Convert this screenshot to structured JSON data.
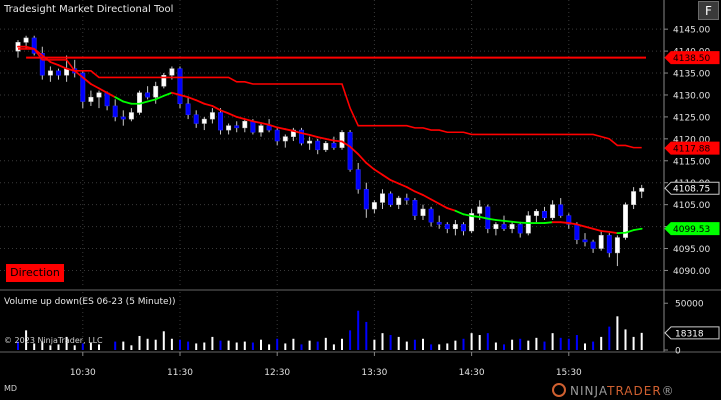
{
  "window": {
    "title": "Tradesight Market Directional Tool",
    "format_button": "F",
    "instrument_mode": "MD",
    "copyright": "© 2023 NinjaTrader, LLC",
    "brand_prefix": "NINJA",
    "brand_suffix": "TRADER",
    "brand_mark": "®"
  },
  "price_panel": {
    "direction_label": "Direction",
    "ylim": [
      4086,
      4148
    ],
    "y_ticks": [
      "4090.00",
      "4095.00",
      "4100.00",
      "4105.00",
      "4110.00",
      "4115.00",
      "4120.00",
      "4125.00",
      "4130.00",
      "4135.00",
      "4140.00",
      "4145.00"
    ],
    "markers": [
      {
        "label": "4138.50",
        "value": 4138.5,
        "color": "#ff0000",
        "text_color": "#000000"
      },
      {
        "label": "4117.88",
        "value": 4117.88,
        "color": "#ff0000",
        "text_color": "#000000"
      },
      {
        "label": "4108.75",
        "value": 4108.75,
        "color": "#000000",
        "text_color": "#ffffff"
      },
      {
        "label": "4099.53",
        "value": 4099.53,
        "color": "#00ff00",
        "text_color": "#000000"
      }
    ]
  },
  "volume_panel": {
    "label": "Volume up down(ES 06-23 (5 Minute))",
    "ylim": [
      0,
      62000
    ],
    "y_ticks": [
      "0",
      "50000"
    ],
    "marker": {
      "label": "18318",
      "value": 18318
    }
  },
  "time_axis": {
    "labels": [
      "10:30",
      "11:30",
      "12:30",
      "13:30",
      "14:30",
      "15:30"
    ],
    "label_bar_index": [
      8,
      20,
      32,
      44,
      56,
      68
    ]
  },
  "colors": {
    "background": "#000000",
    "up": "#ffffff",
    "down": "#0000ff",
    "red_line": "#ff0000",
    "green_line": "#00ff00",
    "grid": "#3a3a3a"
  },
  "chart_data": {
    "type": "candlestick",
    "bars": [
      {
        "o": 4140.0,
        "h": 4142.5,
        "l": 4138.5,
        "c": 4142.0
      },
      {
        "o": 4142.0,
        "h": 4143.5,
        "l": 4140.5,
        "c": 4143.0
      },
      {
        "o": 4143.0,
        "h": 4143.5,
        "l": 4139.0,
        "c": 4139.5
      },
      {
        "o": 4139.5,
        "h": 4141.0,
        "l": 4133.5,
        "c": 4134.5
      },
      {
        "o": 4134.5,
        "h": 4136.5,
        "l": 4133.0,
        "c": 4135.5
      },
      {
        "o": 4135.5,
        "h": 4136.0,
        "l": 4133.5,
        "c": 4134.5
      },
      {
        "o": 4134.5,
        "h": 4139.0,
        "l": 4133.0,
        "c": 4136.0
      },
      {
        "o": 4136.0,
        "h": 4138.0,
        "l": 4134.0,
        "c": 4135.0
      },
      {
        "o": 4135.0,
        "h": 4135.5,
        "l": 4127.0,
        "c": 4128.5
      },
      {
        "o": 4128.5,
        "h": 4131.0,
        "l": 4127.5,
        "c": 4129.5
      },
      {
        "o": 4129.5,
        "h": 4131.0,
        "l": 4127.0,
        "c": 4130.5
      },
      {
        "o": 4130.5,
        "h": 4130.8,
        "l": 4126.5,
        "c": 4127.5
      },
      {
        "o": 4127.5,
        "h": 4129.0,
        "l": 4124.0,
        "c": 4125.0
      },
      {
        "o": 4125.0,
        "h": 4126.5,
        "l": 4123.0,
        "c": 4124.5
      },
      {
        "o": 4124.5,
        "h": 4127.0,
        "l": 4124.0,
        "c": 4126.0
      },
      {
        "o": 4126.0,
        "h": 4131.0,
        "l": 4125.5,
        "c": 4130.5
      },
      {
        "o": 4130.5,
        "h": 4132.0,
        "l": 4129.0,
        "c": 4129.5
      },
      {
        "o": 4129.5,
        "h": 4133.0,
        "l": 4128.0,
        "c": 4132.0
      },
      {
        "o": 4132.0,
        "h": 4135.0,
        "l": 4131.5,
        "c": 4134.5
      },
      {
        "o": 4134.5,
        "h": 4136.5,
        "l": 4133.5,
        "c": 4136.0
      },
      {
        "o": 4136.0,
        "h": 4136.5,
        "l": 4127.0,
        "c": 4128.0
      },
      {
        "o": 4128.0,
        "h": 4129.5,
        "l": 4124.5,
        "c": 4125.5
      },
      {
        "o": 4125.5,
        "h": 4126.5,
        "l": 4122.5,
        "c": 4123.5
      },
      {
        "o": 4123.5,
        "h": 4125.0,
        "l": 4122.0,
        "c": 4124.5
      },
      {
        "o": 4124.5,
        "h": 4127.0,
        "l": 4123.5,
        "c": 4126.0
      },
      {
        "o": 4126.0,
        "h": 4127.0,
        "l": 4121.0,
        "c": 4122.0
      },
      {
        "o": 4122.0,
        "h": 4123.5,
        "l": 4121.0,
        "c": 4123.0
      },
      {
        "o": 4123.0,
        "h": 4124.0,
        "l": 4121.5,
        "c": 4122.5
      },
      {
        "o": 4122.5,
        "h": 4124.5,
        "l": 4121.5,
        "c": 4124.0
      },
      {
        "o": 4124.0,
        "h": 4124.5,
        "l": 4121.0,
        "c": 4121.5
      },
      {
        "o": 4121.5,
        "h": 4123.5,
        "l": 4120.5,
        "c": 4123.0
      },
      {
        "o": 4123.0,
        "h": 4124.5,
        "l": 4121.5,
        "c": 4122.0
      },
      {
        "o": 4122.0,
        "h": 4122.5,
        "l": 4118.5,
        "c": 4119.5
      },
      {
        "o": 4119.5,
        "h": 4121.0,
        "l": 4118.0,
        "c": 4120.5
      },
      {
        "o": 4120.5,
        "h": 4122.5,
        "l": 4119.5,
        "c": 4122.0
      },
      {
        "o": 4122.0,
        "h": 4122.5,
        "l": 4118.5,
        "c": 4119.0
      },
      {
        "o": 4119.0,
        "h": 4120.5,
        "l": 4117.5,
        "c": 4119.5
      },
      {
        "o": 4119.5,
        "h": 4120.0,
        "l": 4116.5,
        "c": 4117.5
      },
      {
        "o": 4117.5,
        "h": 4119.5,
        "l": 4117.0,
        "c": 4119.0
      },
      {
        "o": 4119.0,
        "h": 4120.5,
        "l": 4117.5,
        "c": 4118.0
      },
      {
        "o": 4118.0,
        "h": 4122.0,
        "l": 4117.5,
        "c": 4121.5
      },
      {
        "o": 4121.5,
        "h": 4122.0,
        "l": 4112.5,
        "c": 4113.0
      },
      {
        "o": 4113.0,
        "h": 4114.5,
        "l": 4107.5,
        "c": 4108.5
      },
      {
        "o": 4108.5,
        "h": 4110.0,
        "l": 4102.0,
        "c": 4104.0
      },
      {
        "o": 4104.0,
        "h": 4106.0,
        "l": 4103.0,
        "c": 4105.5
      },
      {
        "o": 4105.5,
        "h": 4108.5,
        "l": 4104.0,
        "c": 4107.5
      },
      {
        "o": 4107.5,
        "h": 4108.0,
        "l": 4104.5,
        "c": 4105.0
      },
      {
        "o": 4105.0,
        "h": 4107.0,
        "l": 4104.0,
        "c": 4106.5
      },
      {
        "o": 4106.5,
        "h": 4107.5,
        "l": 4105.0,
        "c": 4106.0
      },
      {
        "o": 4106.0,
        "h": 4106.5,
        "l": 4101.5,
        "c": 4102.5
      },
      {
        "o": 4102.5,
        "h": 4105.0,
        "l": 4101.5,
        "c": 4104.0
      },
      {
        "o": 4104.0,
        "h": 4104.5,
        "l": 4100.0,
        "c": 4101.0
      },
      {
        "o": 4101.0,
        "h": 4102.5,
        "l": 4099.5,
        "c": 4100.5
      },
      {
        "o": 4100.5,
        "h": 4101.0,
        "l": 4098.5,
        "c": 4099.5
      },
      {
        "o": 4099.5,
        "h": 4101.5,
        "l": 4098.0,
        "c": 4100.5
      },
      {
        "o": 4100.5,
        "h": 4101.0,
        "l": 4098.0,
        "c": 4099.0
      },
      {
        "o": 4099.0,
        "h": 4104.0,
        "l": 4098.5,
        "c": 4103.0
      },
      {
        "o": 4103.0,
        "h": 4106.0,
        "l": 4101.5,
        "c": 4104.5
      },
      {
        "o": 4104.5,
        "h": 4105.0,
        "l": 4098.5,
        "c": 4099.5
      },
      {
        "o": 4099.5,
        "h": 4101.0,
        "l": 4098.0,
        "c": 4100.5
      },
      {
        "o": 4100.5,
        "h": 4102.5,
        "l": 4099.0,
        "c": 4099.5
      },
      {
        "o": 4099.5,
        "h": 4101.0,
        "l": 4098.5,
        "c": 4100.5
      },
      {
        "o": 4100.5,
        "h": 4101.0,
        "l": 4097.5,
        "c": 4098.5
      },
      {
        "o": 4098.5,
        "h": 4103.5,
        "l": 4098.0,
        "c": 4102.5
      },
      {
        "o": 4102.5,
        "h": 4104.0,
        "l": 4101.0,
        "c": 4103.5
      },
      {
        "o": 4103.5,
        "h": 4104.5,
        "l": 4101.5,
        "c": 4102.0
      },
      {
        "o": 4102.0,
        "h": 4106.0,
        "l": 4101.5,
        "c": 4105.0
      },
      {
        "o": 4105.0,
        "h": 4106.5,
        "l": 4102.0,
        "c": 4102.5
      },
      {
        "o": 4102.5,
        "h": 4103.0,
        "l": 4099.5,
        "c": 4100.5
      },
      {
        "o": 4100.5,
        "h": 4101.0,
        "l": 4096.0,
        "c": 4097.0
      },
      {
        "o": 4097.0,
        "h": 4098.5,
        "l": 4095.5,
        "c": 4096.5
      },
      {
        "o": 4096.5,
        "h": 4097.0,
        "l": 4094.0,
        "c": 4095.0
      },
      {
        "o": 4095.0,
        "h": 4099.0,
        "l": 4094.5,
        "c": 4098.0
      },
      {
        "o": 4098.0,
        "h": 4098.5,
        "l": 4093.0,
        "c": 4094.0
      },
      {
        "o": 4094.0,
        "h": 4098.0,
        "l": 4091.0,
        "c": 4097.5
      },
      {
        "o": 4097.5,
        "h": 4105.5,
        "l": 4097.0,
        "c": 4105.0
      },
      {
        "o": 4105.0,
        "h": 4109.0,
        "l": 4104.0,
        "c": 4108.0
      },
      {
        "o": 4108.0,
        "h": 4109.5,
        "l": 4106.5,
        "c": 4108.75
      }
    ],
    "lower_line": [
      4141.0,
      4141.0,
      4140.5,
      4139.0,
      4137.5,
      4136.8,
      4136.0,
      4135.5,
      4134.0,
      4132.5,
      4131.5,
      4130.5,
      4129.5,
      4128.5,
      4128.0,
      4128.0,
      4128.5,
      4129.0,
      4129.8,
      4130.5,
      4130.0,
      4129.5,
      4128.8,
      4128.0,
      4127.5,
      4126.5,
      4125.8,
      4125.0,
      4124.5,
      4124.0,
      4123.6,
      4123.2,
      4122.6,
      4122.2,
      4121.8,
      4121.3,
      4120.9,
      4120.4,
      4120.0,
      4119.6,
      4119.4,
      4118.2,
      4116.5,
      4114.5,
      4113.0,
      4111.8,
      4110.6,
      4109.8,
      4109.0,
      4108.0,
      4107.2,
      4106.2,
      4105.2,
      4104.2,
      4103.6,
      4102.8,
      4102.4,
      4102.2,
      4101.8,
      4101.5,
      4101.3,
      4101.1,
      4100.9,
      4100.8,
      4100.8,
      4100.8,
      4101.0,
      4101.0,
      4100.8,
      4100.5,
      4100.0,
      4099.5,
      4099.0,
      4098.8,
      4098.5,
      4098.6,
      4099.2,
      4099.5
    ],
    "lower_line_green_ranges": [
      [
        12,
        19
      ],
      [
        54,
        66
      ],
      [
        74,
        77
      ]
    ],
    "upper_line": [
      4140.5,
      4140.5,
      4140.5,
      4138.0,
      4138.0,
      4138.0,
      4138.0,
      4135.5,
      4135.5,
      4135.5,
      4134.0,
      4134.0,
      4134.0,
      4134.0,
      4134.0,
      4134.0,
      4134.0,
      4134.0,
      4134.0,
      4134.0,
      4134.0,
      4134.0,
      4134.0,
      4134.0,
      4134.0,
      4134.0,
      4134.0,
      4133.0,
      4133.0,
      4132.5,
      4132.5,
      4132.5,
      4132.5,
      4132.5,
      4132.5,
      4132.5,
      4132.5,
      4132.5,
      4132.5,
      4132.5,
      4132.5,
      4127.0,
      4123.0,
      4123.0,
      4123.0,
      4123.0,
      4123.0,
      4123.0,
      4123.0,
      4122.5,
      4122.5,
      4122.0,
      4122.0,
      4121.5,
      4121.5,
      4121.5,
      4121.0,
      4121.0,
      4121.0,
      4121.0,
      4121.0,
      4121.0,
      4121.0,
      4121.0,
      4121.0,
      4121.0,
      4121.0,
      4121.0,
      4121.0,
      4121.0,
      4121.0,
      4121.0,
      4120.5,
      4120.0,
      4118.5,
      4118.5,
      4118.0,
      4118.0
    ],
    "resistance_line": 4138.5,
    "volume_up": [
      0,
      21000,
      7000,
      9000,
      5000,
      6000,
      14000,
      5000,
      0,
      8000,
      6000,
      0,
      0,
      9000,
      5000,
      15000,
      12000,
      11000,
      20000,
      12000,
      0,
      0,
      7000,
      8000,
      14000,
      0,
      10000,
      8000,
      9000,
      0,
      11000,
      6000,
      0,
      7000,
      12000,
      0,
      10000,
      0,
      13000,
      6000,
      12000,
      0,
      0,
      0,
      11000,
      18000,
      0,
      14000,
      9000,
      0,
      12000,
      0,
      6000,
      7000,
      10000,
      0,
      18000,
      16000,
      0,
      8000,
      0,
      11000,
      0,
      10000,
      13000,
      0,
      18000,
      0,
      0,
      0,
      7000,
      0,
      14000,
      0,
      36000,
      22000,
      14000,
      18318
    ],
    "volume_down": [
      9000,
      0,
      0,
      0,
      0,
      0,
      0,
      0,
      7000,
      0,
      0,
      0,
      9000,
      0,
      0,
      0,
      0,
      0,
      0,
      0,
      11000,
      9000,
      0,
      0,
      0,
      10000,
      0,
      0,
      0,
      8000,
      0,
      0,
      12000,
      0,
      0,
      6000,
      0,
      9000,
      0,
      0,
      0,
      21000,
      42000,
      30000,
      0,
      0,
      16000,
      0,
      0,
      11000,
      0,
      6000,
      0,
      0,
      0,
      12000,
      0,
      0,
      18000,
      0,
      6000,
      0,
      12000,
      0,
      0,
      9000,
      0,
      13000,
      12000,
      16000,
      0,
      9000,
      0,
      25000,
      0,
      0,
      0,
      0
    ]
  }
}
